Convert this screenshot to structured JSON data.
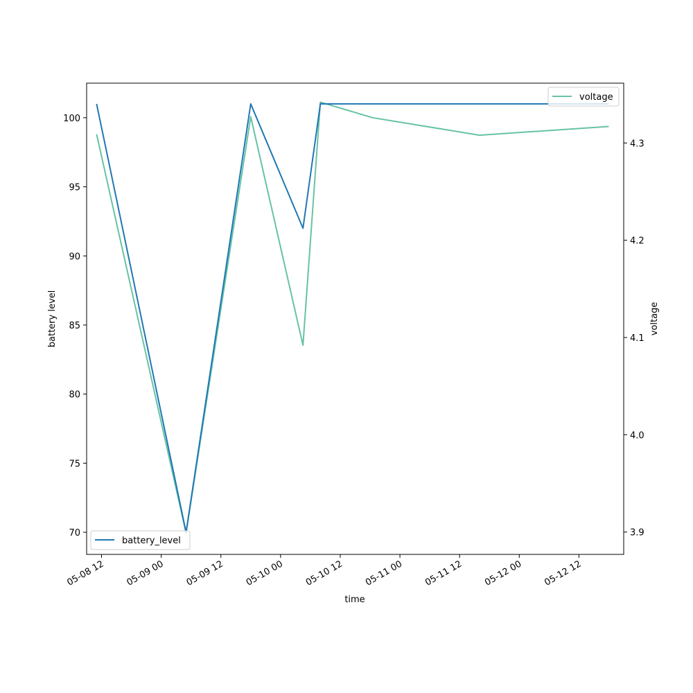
{
  "chart_data": {
    "type": "line",
    "xlabel": "time",
    "x_tick_labels": [
      "05-08 12",
      "05-09 00",
      "05-09 12",
      "05-10 00",
      "05-10 12",
      "05-11 00",
      "05-11 12",
      "05-12 00",
      "05-12 12"
    ],
    "x_ticks": [
      "2024-05-08 12:00",
      "2024-05-09 00:00",
      "2024-05-09 12:00",
      "2024-05-10 00:00",
      "2024-05-10 12:00",
      "2024-05-11 00:00",
      "2024-05-11 12:00",
      "2024-05-12 00:00",
      "2024-05-12 12:00"
    ],
    "xlim": [
      "2024-05-08 09:00",
      "2024-05-12 21:00"
    ],
    "left_axis": {
      "label": "battery level",
      "ylim": [
        68.4,
        102.5
      ],
      "ticks": [
        70,
        75,
        80,
        85,
        90,
        95,
        100
      ]
    },
    "right_axis": {
      "label": "voltage",
      "ylim": [
        3.877,
        4.3615
      ],
      "ticks": [
        3.9,
        4.0,
        4.1,
        4.2,
        4.3
      ],
      "tick_labels": [
        "3.9",
        "4.0",
        "4.1",
        "4.2",
        "4.3"
      ]
    },
    "series": [
      {
        "name": "battery_level",
        "axis": "left",
        "color": "#1f77b4",
        "points": [
          {
            "x": "2024-05-08 11:00",
            "y": 101
          },
          {
            "x": "2024-05-09 05:00",
            "y": 70
          },
          {
            "x": "2024-05-09 18:00",
            "y": 101
          },
          {
            "x": "2024-05-10 04:30",
            "y": 92
          },
          {
            "x": "2024-05-10 08:00",
            "y": 101
          },
          {
            "x": "2024-05-11 16:00",
            "y": 101
          },
          {
            "x": "2024-05-12 18:00",
            "y": 101
          }
        ]
      },
      {
        "name": "voltage",
        "axis": "right",
        "color": "#66c2a5",
        "points": [
          {
            "x": "2024-05-08 11:00",
            "y": 4.309
          },
          {
            "x": "2024-05-09 05:00",
            "y": 3.899
          },
          {
            "x": "2024-05-09 18:00",
            "y": 4.327
          },
          {
            "x": "2024-05-10 04:30",
            "y": 4.092
          },
          {
            "x": "2024-05-10 08:00",
            "y": 4.342
          },
          {
            "x": "2024-05-10 18:30",
            "y": 4.326
          },
          {
            "x": "2024-05-11 16:00",
            "y": 4.308
          },
          {
            "x": "2024-05-12 18:00",
            "y": 4.317
          }
        ]
      }
    ],
    "legends": [
      {
        "series": "battery_level",
        "placement": "lower-left"
      },
      {
        "series": "voltage",
        "placement": "upper-right"
      }
    ]
  }
}
